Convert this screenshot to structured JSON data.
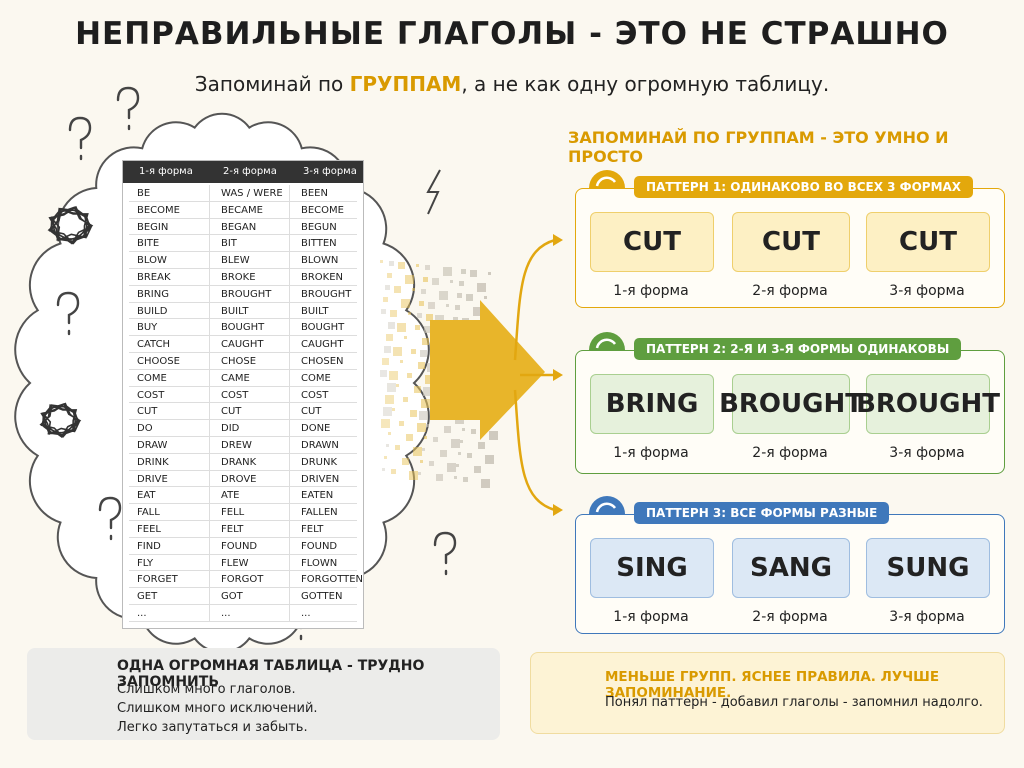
{
  "header": {
    "title": "НЕПРАВИЛЬНЫЕ ГЛАГОЛЫ - ЭТО НЕ СТРАШНО",
    "subtitle_start": "Запоминай по ",
    "subtitle_highlight": "ГРУППАМ",
    "subtitle_end": ", а не как одну огромную таблицу."
  },
  "table": {
    "columns": [
      "1-я форма",
      "2-я форма",
      "3-я форма"
    ],
    "rows": [
      [
        "BE",
        "WAS / WERE",
        "BEEN"
      ],
      [
        "BECOME",
        "BECAME",
        "BECOME"
      ],
      [
        "BEGIN",
        "BEGAN",
        "BEGUN"
      ],
      [
        "BITE",
        "BIT",
        "BITTEN"
      ],
      [
        "BLOW",
        "BLEW",
        "BLOWN"
      ],
      [
        "BREAK",
        "BROKE",
        "BROKEN"
      ],
      [
        "BRING",
        "BROUGHT",
        "BROUGHT"
      ],
      [
        "BUILD",
        "BUILT",
        "BUILT"
      ],
      [
        "BUY",
        "BOUGHT",
        "BOUGHT"
      ],
      [
        "CATCH",
        "CAUGHT",
        "CAUGHT"
      ],
      [
        "CHOOSE",
        "CHOSE",
        "CHOSEN"
      ],
      [
        "COME",
        "CAME",
        "COME"
      ],
      [
        "COST",
        "COST",
        "COST"
      ],
      [
        "CUT",
        "CUT",
        "CUT"
      ],
      [
        "DO",
        "DID",
        "DONE"
      ],
      [
        "DRAW",
        "DREW",
        "DRAWN"
      ],
      [
        "DRINK",
        "DRANK",
        "DRUNK"
      ],
      [
        "DRIVE",
        "DROVE",
        "DRIVEN"
      ],
      [
        "EAT",
        "ATE",
        "EATEN"
      ],
      [
        "FALL",
        "FELL",
        "FALLEN"
      ],
      [
        "FEEL",
        "FELT",
        "FELT"
      ],
      [
        "FIND",
        "FOUND",
        "FOUND"
      ],
      [
        "FLY",
        "FLEW",
        "FLOWN"
      ],
      [
        "FORGET",
        "FORGOT",
        "FORGOTTEN"
      ],
      [
        "GET",
        "GOT",
        "GOTTEN"
      ],
      [
        "...",
        "...",
        "..."
      ]
    ]
  },
  "patterns_heading": "ЗАПОМИНАЙ ПО ГРУППАМ - ЭТО УМНО И ПРОСТО",
  "patterns": [
    {
      "title": "ПАТТЕРН 1: ОДИНАКОВО ВО ВСЕХ 3 ФОРМАХ",
      "forms": [
        "CUT",
        "CUT",
        "CUT"
      ],
      "labels": [
        "1-я форма",
        "2-я форма",
        "3-я форма"
      ]
    },
    {
      "title": "ПАТТЕРН 2: 2-Я И 3-Я ФОРМЫ ОДИНАКОВЫ",
      "forms": [
        "BRING",
        "BROUGHT",
        "BROUGHT"
      ],
      "labels": [
        "1-я форма",
        "2-я форма",
        "3-я форма"
      ]
    },
    {
      "title": "ПАТТЕРН 3: ВСЕ ФОРМЫ РАЗНЫЕ",
      "forms": [
        "SING",
        "SANG",
        "SUNG"
      ],
      "labels": [
        "1-я форма",
        "2-я форма",
        "3-я форма"
      ]
    }
  ],
  "problem": {
    "title": "ОДНА ОГРОМНАЯ ТАБЛИЦА - ТРУДНО ЗАПОМНИТЬ",
    "lines": [
      "Слишком много глаголов.",
      "Слишком много исключений.",
      "Легко запутаться и забыть."
    ]
  },
  "solution": {
    "title": "МЕНЬШЕ ГРУПП. ЯСНЕЕ ПРАВИЛА. ЛУЧШЕ ЗАПОМИНАНИЕ.",
    "text": "Понял паттерн - добавил глаголы - запомнил надолго."
  }
}
